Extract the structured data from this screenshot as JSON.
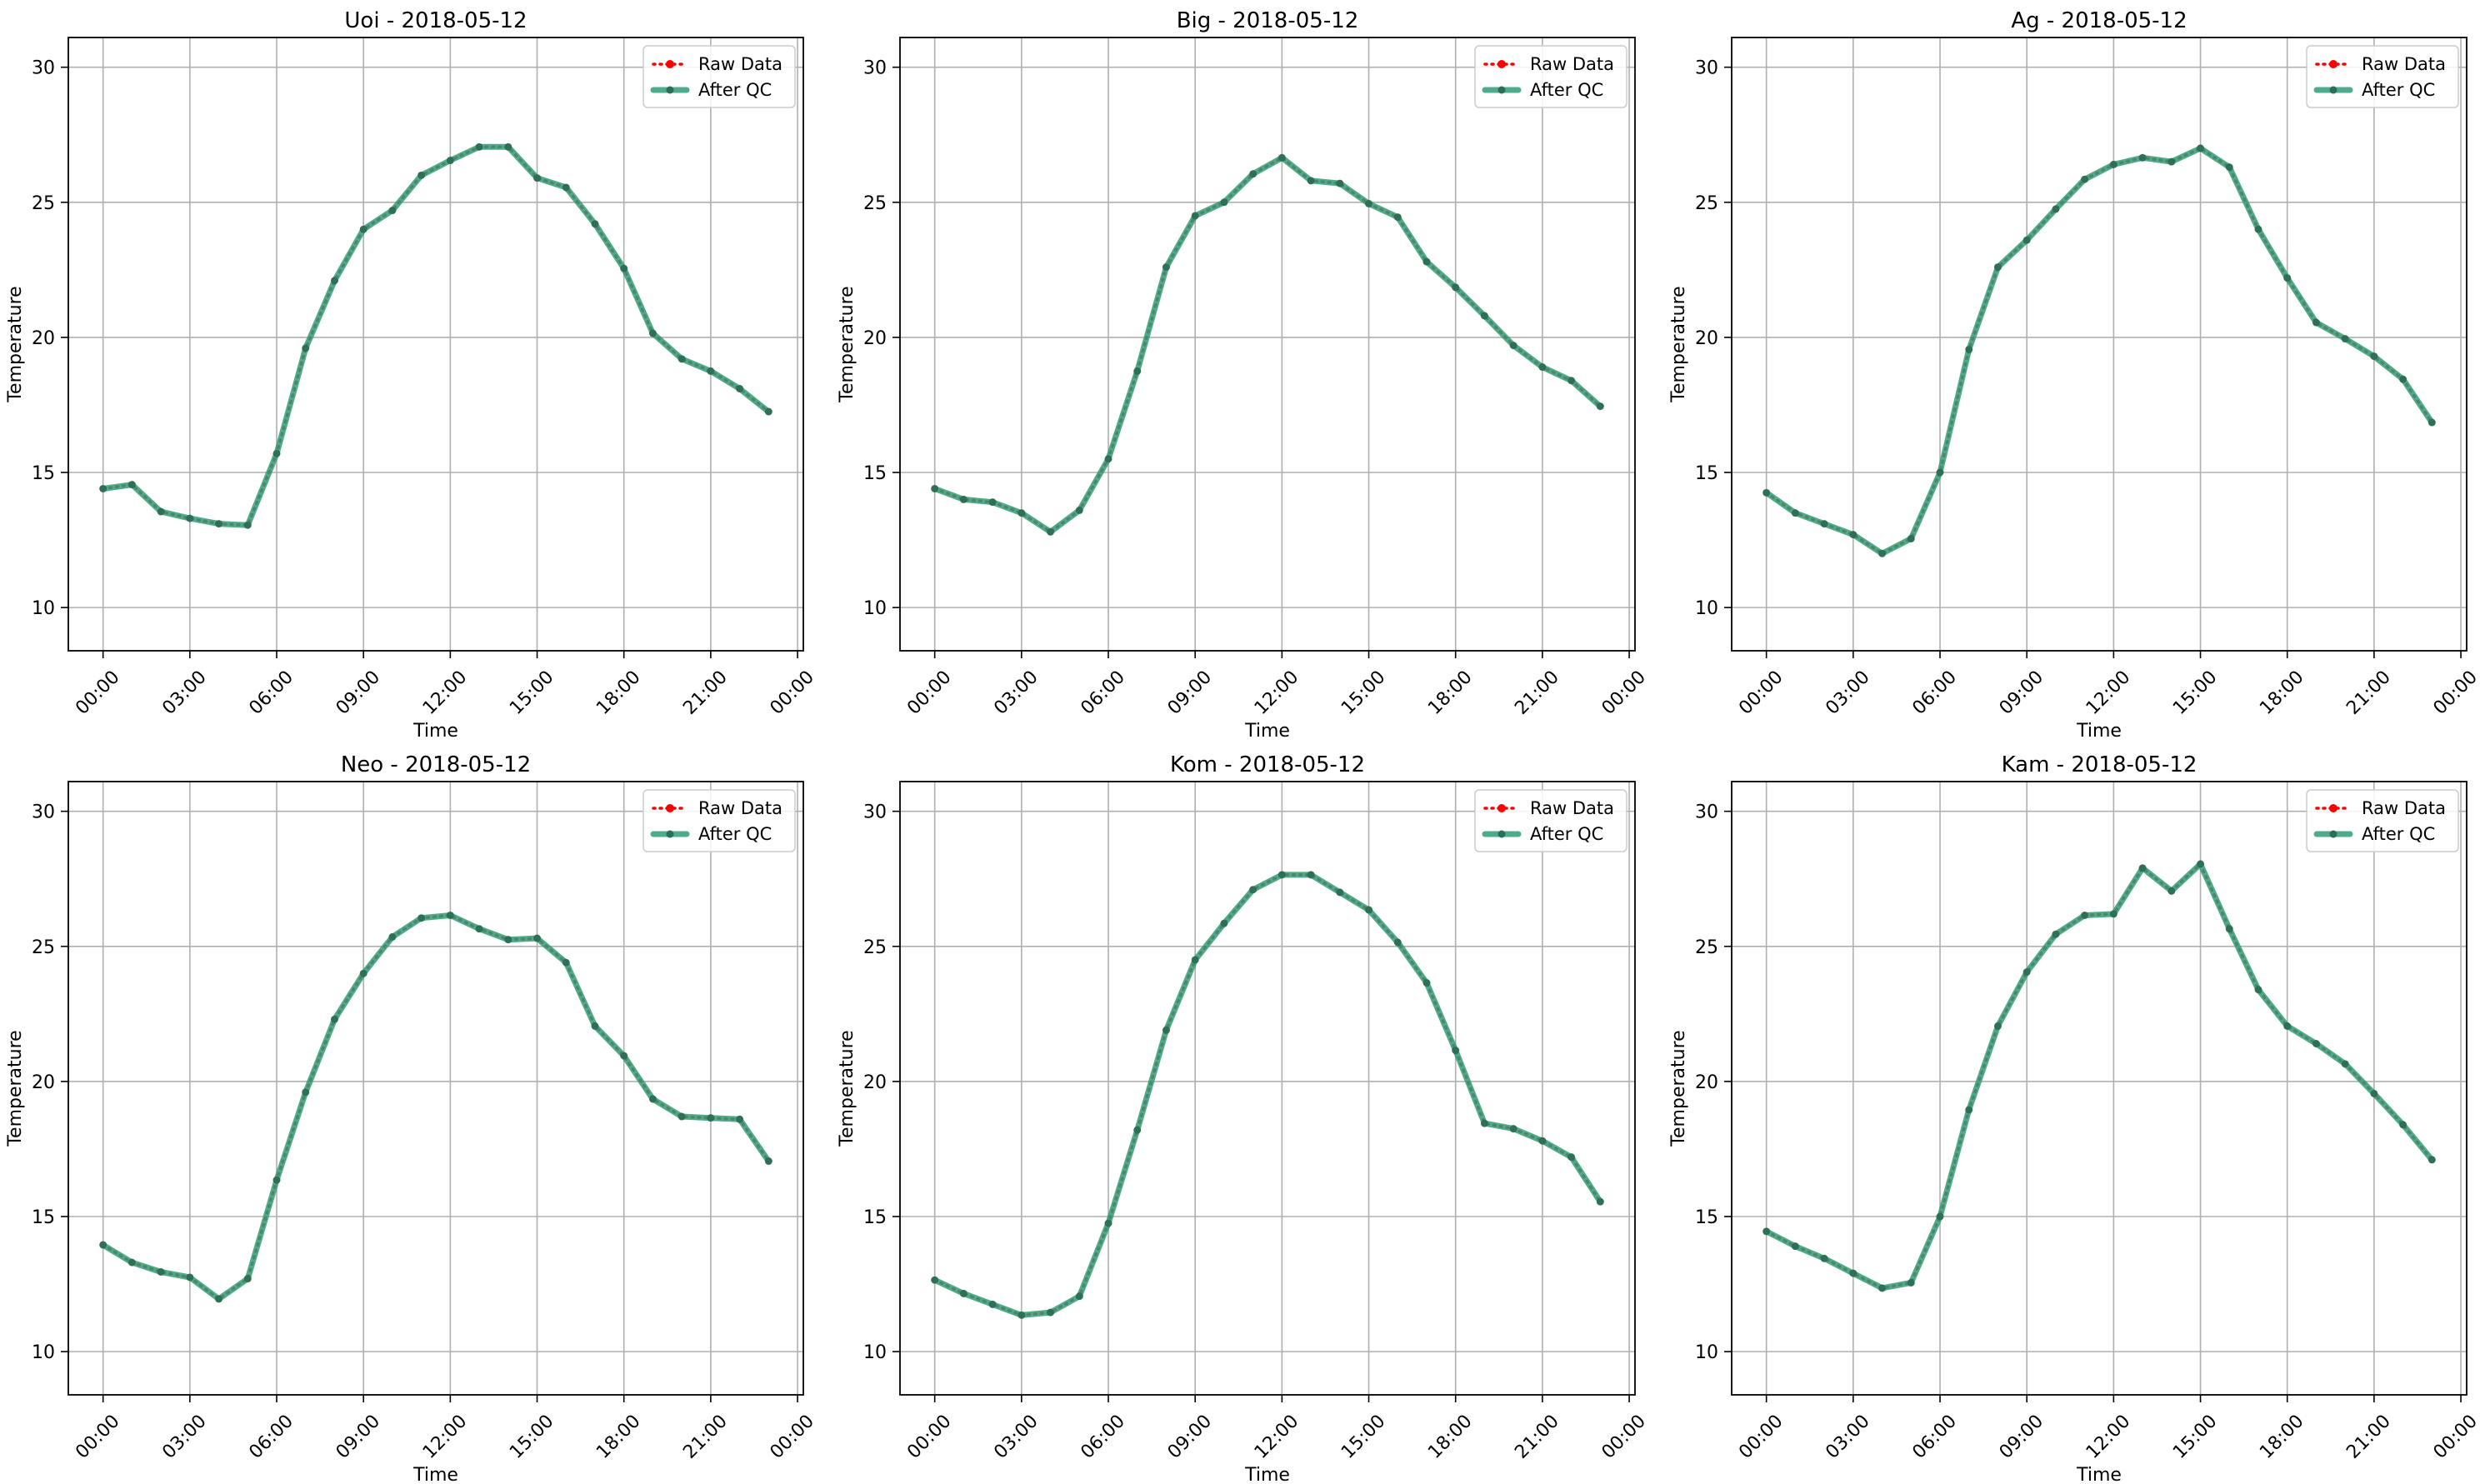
{
  "figure": {
    "layout": "2x3 grid",
    "colors": {
      "raw": "#ff0000",
      "qc": "#2f9e78",
      "grid": "#b0b0b0",
      "axes": "#000000"
    }
  },
  "chart_data": [
    {
      "type": "line",
      "title": "Uoi - 2018-05-12",
      "xlabel": "Time",
      "ylabel": "Temperature",
      "ylim": [
        8.4,
        31.1
      ],
      "yticks": [
        10,
        15,
        20,
        25,
        30
      ],
      "xticks": [
        "00:00",
        "03:00",
        "06:00",
        "09:00",
        "12:00",
        "15:00",
        "18:00",
        "21:00",
        "00:00"
      ],
      "xlim_hours": [
        -1.2,
        24.2
      ],
      "grid": true,
      "legend": {
        "position": "upper-right",
        "entries": [
          "Raw Data",
          "After QC"
        ]
      },
      "x_hours": [
        0,
        1,
        2,
        3,
        4,
        5,
        6,
        7,
        8,
        9,
        10,
        11,
        12,
        13,
        14,
        15,
        16,
        17,
        18,
        19,
        20,
        21,
        22,
        23
      ],
      "series": [
        {
          "name": "Raw Data",
          "style": "dotted",
          "color": "#ff0000",
          "values": [
            14.4,
            14.55,
            13.55,
            13.3,
            13.1,
            13.05,
            15.7,
            19.6,
            22.1,
            24.0,
            24.7,
            26.0,
            26.55,
            27.05,
            27.05,
            25.9,
            25.55,
            24.2,
            22.55,
            20.15,
            19.2,
            18.75,
            18.1,
            17.25
          ]
        },
        {
          "name": "After QC",
          "style": "solid",
          "color": "#2f9e78",
          "values": [
            14.4,
            14.55,
            13.55,
            13.3,
            13.1,
            13.05,
            15.7,
            19.6,
            22.1,
            24.0,
            24.7,
            26.0,
            26.55,
            27.05,
            27.05,
            25.9,
            25.55,
            24.2,
            22.55,
            20.15,
            19.2,
            18.75,
            18.1,
            17.25
          ]
        }
      ]
    },
    {
      "type": "line",
      "title": "Big - 2018-05-12",
      "xlabel": "Time",
      "ylabel": "Temperature",
      "ylim": [
        8.4,
        31.1
      ],
      "yticks": [
        10,
        15,
        20,
        25,
        30
      ],
      "xticks": [
        "00:00",
        "03:00",
        "06:00",
        "09:00",
        "12:00",
        "15:00",
        "18:00",
        "21:00",
        "00:00"
      ],
      "xlim_hours": [
        -1.2,
        24.2
      ],
      "grid": true,
      "legend": {
        "position": "upper-right",
        "entries": [
          "Raw Data",
          "After QC"
        ]
      },
      "x_hours": [
        0,
        1,
        2,
        3,
        4,
        5,
        6,
        7,
        8,
        9,
        10,
        11,
        12,
        13,
        14,
        15,
        16,
        17,
        18,
        19,
        20,
        21,
        22,
        23
      ],
      "series": [
        {
          "name": "Raw Data",
          "style": "dotted",
          "color": "#ff0000",
          "values": [
            14.4,
            14.0,
            13.9,
            13.5,
            12.8,
            13.6,
            15.5,
            18.75,
            22.6,
            24.5,
            25.0,
            26.05,
            26.65,
            25.8,
            25.7,
            24.95,
            24.45,
            22.8,
            21.85,
            20.8,
            19.7,
            18.9,
            18.4,
            17.45
          ]
        },
        {
          "name": "After QC",
          "style": "solid",
          "color": "#2f9e78",
          "values": [
            14.4,
            14.0,
            13.9,
            13.5,
            12.8,
            13.6,
            15.5,
            18.75,
            22.6,
            24.5,
            25.0,
            26.05,
            26.65,
            25.8,
            25.7,
            24.95,
            24.45,
            22.8,
            21.85,
            20.8,
            19.7,
            18.9,
            18.4,
            17.45
          ]
        }
      ]
    },
    {
      "type": "line",
      "title": "Ag - 2018-05-12",
      "xlabel": "Time",
      "ylabel": "Temperature",
      "ylim": [
        8.4,
        31.1
      ],
      "yticks": [
        10,
        15,
        20,
        25,
        30
      ],
      "xticks": [
        "00:00",
        "03:00",
        "06:00",
        "09:00",
        "12:00",
        "15:00",
        "18:00",
        "21:00",
        "00:00"
      ],
      "xlim_hours": [
        -1.2,
        24.2
      ],
      "grid": true,
      "legend": {
        "position": "upper-right",
        "entries": [
          "Raw Data",
          "After QC"
        ]
      },
      "x_hours": [
        0,
        1,
        2,
        3,
        4,
        5,
        6,
        7,
        8,
        9,
        10,
        11,
        12,
        13,
        14,
        15,
        16,
        17,
        18,
        19,
        20,
        21,
        22,
        23
      ],
      "series": [
        {
          "name": "Raw Data",
          "style": "dotted",
          "color": "#ff0000",
          "values": [
            14.25,
            13.5,
            13.1,
            12.7,
            12.0,
            12.55,
            15.0,
            19.55,
            22.6,
            23.6,
            24.75,
            25.85,
            26.4,
            26.65,
            26.5,
            27.0,
            26.3,
            24.0,
            22.2,
            20.55,
            19.95,
            19.3,
            18.45,
            16.85
          ]
        },
        {
          "name": "After QC",
          "style": "solid",
          "color": "#2f9e78",
          "values": [
            14.25,
            13.5,
            13.1,
            12.7,
            12.0,
            12.55,
            15.0,
            19.55,
            22.6,
            23.6,
            24.75,
            25.85,
            26.4,
            26.65,
            26.5,
            27.0,
            26.3,
            24.0,
            22.2,
            20.55,
            19.95,
            19.3,
            18.45,
            16.85
          ]
        }
      ]
    },
    {
      "type": "line",
      "title": "Neo - 2018-05-12",
      "xlabel": "Time",
      "ylabel": "Temperature",
      "ylim": [
        8.4,
        31.1
      ],
      "yticks": [
        10,
        15,
        20,
        25,
        30
      ],
      "xticks": [
        "00:00",
        "03:00",
        "06:00",
        "09:00",
        "12:00",
        "15:00",
        "18:00",
        "21:00",
        "00:00"
      ],
      "xlim_hours": [
        -1.2,
        24.2
      ],
      "grid": true,
      "legend": {
        "position": "upper-right",
        "entries": [
          "Raw Data",
          "After QC"
        ]
      },
      "x_hours": [
        0,
        1,
        2,
        3,
        4,
        5,
        6,
        7,
        8,
        9,
        10,
        11,
        12,
        13,
        14,
        15,
        16,
        17,
        18,
        19,
        20,
        21,
        22,
        23
      ],
      "series": [
        {
          "name": "Raw Data",
          "style": "dotted",
          "color": "#ff0000",
          "values": [
            13.95,
            13.3,
            12.95,
            12.75,
            11.95,
            12.7,
            16.35,
            19.6,
            22.3,
            24.0,
            25.35,
            26.05,
            26.15,
            25.65,
            25.25,
            25.3,
            24.4,
            22.05,
            20.95,
            19.35,
            18.7,
            18.65,
            18.6,
            17.05
          ]
        },
        {
          "name": "After QC",
          "style": "solid",
          "color": "#2f9e78",
          "values": [
            13.95,
            13.3,
            12.95,
            12.75,
            11.95,
            12.7,
            16.35,
            19.6,
            22.3,
            24.0,
            25.35,
            26.05,
            26.15,
            25.65,
            25.25,
            25.3,
            24.4,
            22.05,
            20.95,
            19.35,
            18.7,
            18.65,
            18.6,
            17.05
          ]
        }
      ]
    },
    {
      "type": "line",
      "title": "Kom - 2018-05-12",
      "xlabel": "Time",
      "ylabel": "Temperature",
      "ylim": [
        8.4,
        31.1
      ],
      "yticks": [
        10,
        15,
        20,
        25,
        30
      ],
      "xticks": [
        "00:00",
        "03:00",
        "06:00",
        "09:00",
        "12:00",
        "15:00",
        "18:00",
        "21:00",
        "00:00"
      ],
      "xlim_hours": [
        -1.2,
        24.2
      ],
      "grid": true,
      "legend": {
        "position": "upper-right",
        "entries": [
          "Raw Data",
          "After QC"
        ]
      },
      "x_hours": [
        0,
        1,
        2,
        3,
        4,
        5,
        6,
        7,
        8,
        9,
        10,
        11,
        12,
        13,
        14,
        15,
        16,
        17,
        18,
        19,
        20,
        21,
        22,
        23
      ],
      "series": [
        {
          "name": "Raw Data",
          "style": "dotted",
          "color": "#ff0000",
          "values": [
            12.65,
            12.15,
            11.75,
            11.35,
            11.45,
            12.05,
            14.75,
            18.2,
            21.9,
            24.5,
            25.85,
            27.1,
            27.65,
            27.65,
            27.0,
            26.35,
            25.15,
            23.65,
            21.15,
            18.45,
            18.25,
            17.8,
            17.2,
            15.55
          ]
        },
        {
          "name": "After QC",
          "style": "solid",
          "color": "#2f9e78",
          "values": [
            12.65,
            12.15,
            11.75,
            11.35,
            11.45,
            12.05,
            14.75,
            18.2,
            21.9,
            24.5,
            25.85,
            27.1,
            27.65,
            27.65,
            27.0,
            26.35,
            25.15,
            23.65,
            21.15,
            18.45,
            18.25,
            17.8,
            17.2,
            15.55
          ]
        }
      ]
    },
    {
      "type": "line",
      "title": "Kam - 2018-05-12",
      "xlabel": "Time",
      "ylabel": "Temperature",
      "ylim": [
        8.4,
        31.1
      ],
      "yticks": [
        10,
        15,
        20,
        25,
        30
      ],
      "xticks": [
        "00:00",
        "03:00",
        "06:00",
        "09:00",
        "12:00",
        "15:00",
        "18:00",
        "21:00",
        "00:00"
      ],
      "xlim_hours": [
        -1.2,
        24.2
      ],
      "grid": true,
      "legend": {
        "position": "upper-right",
        "entries": [
          "Raw Data",
          "After QC"
        ]
      },
      "x_hours": [
        0,
        1,
        2,
        3,
        4,
        5,
        6,
        7,
        8,
        9,
        10,
        11,
        12,
        13,
        14,
        15,
        16,
        17,
        18,
        19,
        20,
        21,
        22,
        23
      ],
      "series": [
        {
          "name": "Raw Data",
          "style": "dotted",
          "color": "#ff0000",
          "values": [
            14.45,
            13.9,
            13.45,
            12.9,
            12.35,
            12.55,
            15.0,
            18.95,
            22.05,
            24.05,
            25.45,
            26.15,
            26.2,
            27.9,
            27.05,
            28.05,
            25.65,
            23.4,
            22.05,
            21.4,
            20.65,
            19.55,
            18.4,
            17.1
          ]
        },
        {
          "name": "After QC",
          "style": "solid",
          "color": "#2f9e78",
          "values": [
            14.45,
            13.9,
            13.45,
            12.9,
            12.35,
            12.55,
            15.0,
            18.95,
            22.05,
            24.05,
            25.45,
            26.15,
            26.2,
            27.9,
            27.05,
            28.05,
            25.65,
            23.4,
            22.05,
            21.4,
            20.65,
            19.55,
            18.4,
            17.1
          ]
        }
      ]
    }
  ]
}
